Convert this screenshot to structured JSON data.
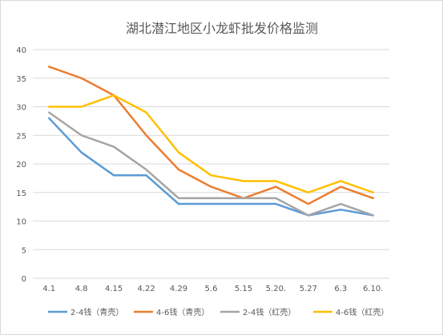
{
  "chart_data": {
    "type": "line",
    "title": "湖北潜江地区小龙虾批发价格监测",
    "categories": [
      "4.1",
      "4.8",
      "4.15",
      "4.22",
      "4.29",
      "5.6",
      "5.15",
      "5.20.",
      "5.27",
      "6.3",
      "6.10."
    ],
    "ylim": [
      0,
      40
    ],
    "yticks": [
      0,
      5,
      10,
      15,
      20,
      25,
      30,
      35,
      40
    ],
    "grid": true,
    "legend_position": "bottom",
    "series": [
      {
        "name": "2-4钱（青壳）",
        "color": "#5b9bd5",
        "values": [
          28,
          22,
          18,
          18,
          13,
          13,
          13,
          13,
          11,
          12,
          11
        ]
      },
      {
        "name": "4-6钱（青壳）",
        "color": "#ed7d31",
        "values": [
          37,
          35,
          32,
          25,
          19,
          16,
          14,
          16,
          13,
          16,
          14
        ]
      },
      {
        "name": "2-4钱（红壳）",
        "color": "#a5a5a5",
        "values": [
          29,
          25,
          23,
          19,
          14,
          14,
          14,
          14,
          11,
          13,
          11
        ]
      },
      {
        "name": "4-6钱（红壳）",
        "color": "#ffc000",
        "values": [
          30,
          30,
          32,
          29,
          22,
          18,
          17,
          17,
          15,
          17,
          15
        ]
      }
    ]
  }
}
